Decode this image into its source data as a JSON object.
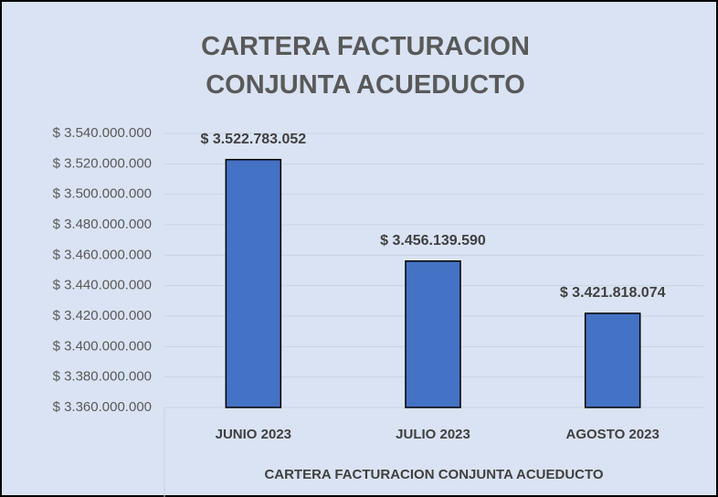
{
  "chart_data": {
    "type": "bar",
    "title": "CARTERA FACTURACION CONJUNTA ACUEDUCTO",
    "x_label": "CARTERA FACTURACION CONJUNTA ACUEDUCTO",
    "categories": [
      "JUNIO 2023",
      "JULIO  2023",
      "AGOSTO 2023"
    ],
    "values": [
      3522783052,
      3456139590,
      3421818074
    ],
    "value_labels": [
      "$ 3.522.783.052",
      "$ 3.456.139.590",
      "$ 3.421.818.074"
    ],
    "color": "#4472c4",
    "ylim": [
      3360000000,
      3540000000
    ],
    "yticks": [
      {
        "value": 3360000000,
        "label": "$ 3.360.000.000"
      },
      {
        "value": 3380000000,
        "label": "$ 3.380.000.000"
      },
      {
        "value": 3400000000,
        "label": "$ 3.400.000.000"
      },
      {
        "value": 3420000000,
        "label": "$ 3.420.000.000"
      },
      {
        "value": 3440000000,
        "label": "$ 3.440.000.000"
      },
      {
        "value": 3460000000,
        "label": "$ 3.460.000.000"
      },
      {
        "value": 3480000000,
        "label": "$ 3.480.000.000"
      },
      {
        "value": 3500000000,
        "label": "$ 3.500.000.000"
      },
      {
        "value": 3520000000,
        "label": "$ 3.520.000.000"
      },
      {
        "value": 3540000000,
        "label": "$ 3.540.000.000"
      }
    ],
    "grid": true
  }
}
